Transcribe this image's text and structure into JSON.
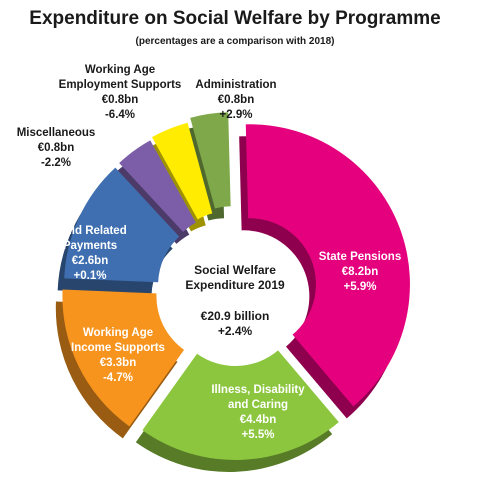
{
  "title": "Expenditure on Social Welfare by Programme",
  "subtitle": "(percentages are a comparison with 2018)",
  "center": {
    "line1": "Social Welfare",
    "line2": "Expenditure 2019",
    "total": "€20.9 billion",
    "change": "+2.4%"
  },
  "chart_data": {
    "type": "pie",
    "unit": "€bn",
    "total": 20.9,
    "total_change_pct": 2.4,
    "slices": [
      {
        "name": "State Pensions",
        "value": 8.2,
        "value_label": "€8.2bn",
        "change_pct": 5.9,
        "change_label": "+5.9%",
        "color": "#e5007e"
      },
      {
        "name": "Illness, Disability and Caring",
        "value": 4.4,
        "value_label": "€4.4bn",
        "change_pct": 5.5,
        "change_label": "+5.5%",
        "color": "#8cc63f"
      },
      {
        "name": "Working Age Income Supports",
        "value": 3.3,
        "value_label": "€3.3bn",
        "change_pct": -4.7,
        "change_label": "-4.7%",
        "color": "#f7941d"
      },
      {
        "name": "Child Related Payments",
        "value": 2.6,
        "value_label": "€2.6bn",
        "change_pct": 0.1,
        "change_label": "+0.1%",
        "color": "#3f6fb0"
      },
      {
        "name": "Miscellaneous",
        "value": 0.8,
        "value_label": "€0.8bn",
        "change_pct": -2.2,
        "change_label": "-2.2%",
        "color": "#7b5ea7"
      },
      {
        "name": "Working Age Employment Supports",
        "value": 0.8,
        "value_label": "€0.8bn",
        "change_pct": -6.4,
        "change_label": "-6.4%",
        "color": "#ffec00"
      },
      {
        "name": "Administration",
        "value": 0.8,
        "value_label": "€0.8bn",
        "change_pct": 2.9,
        "change_label": "+2.9%",
        "color": "#7ea84a"
      }
    ]
  }
}
